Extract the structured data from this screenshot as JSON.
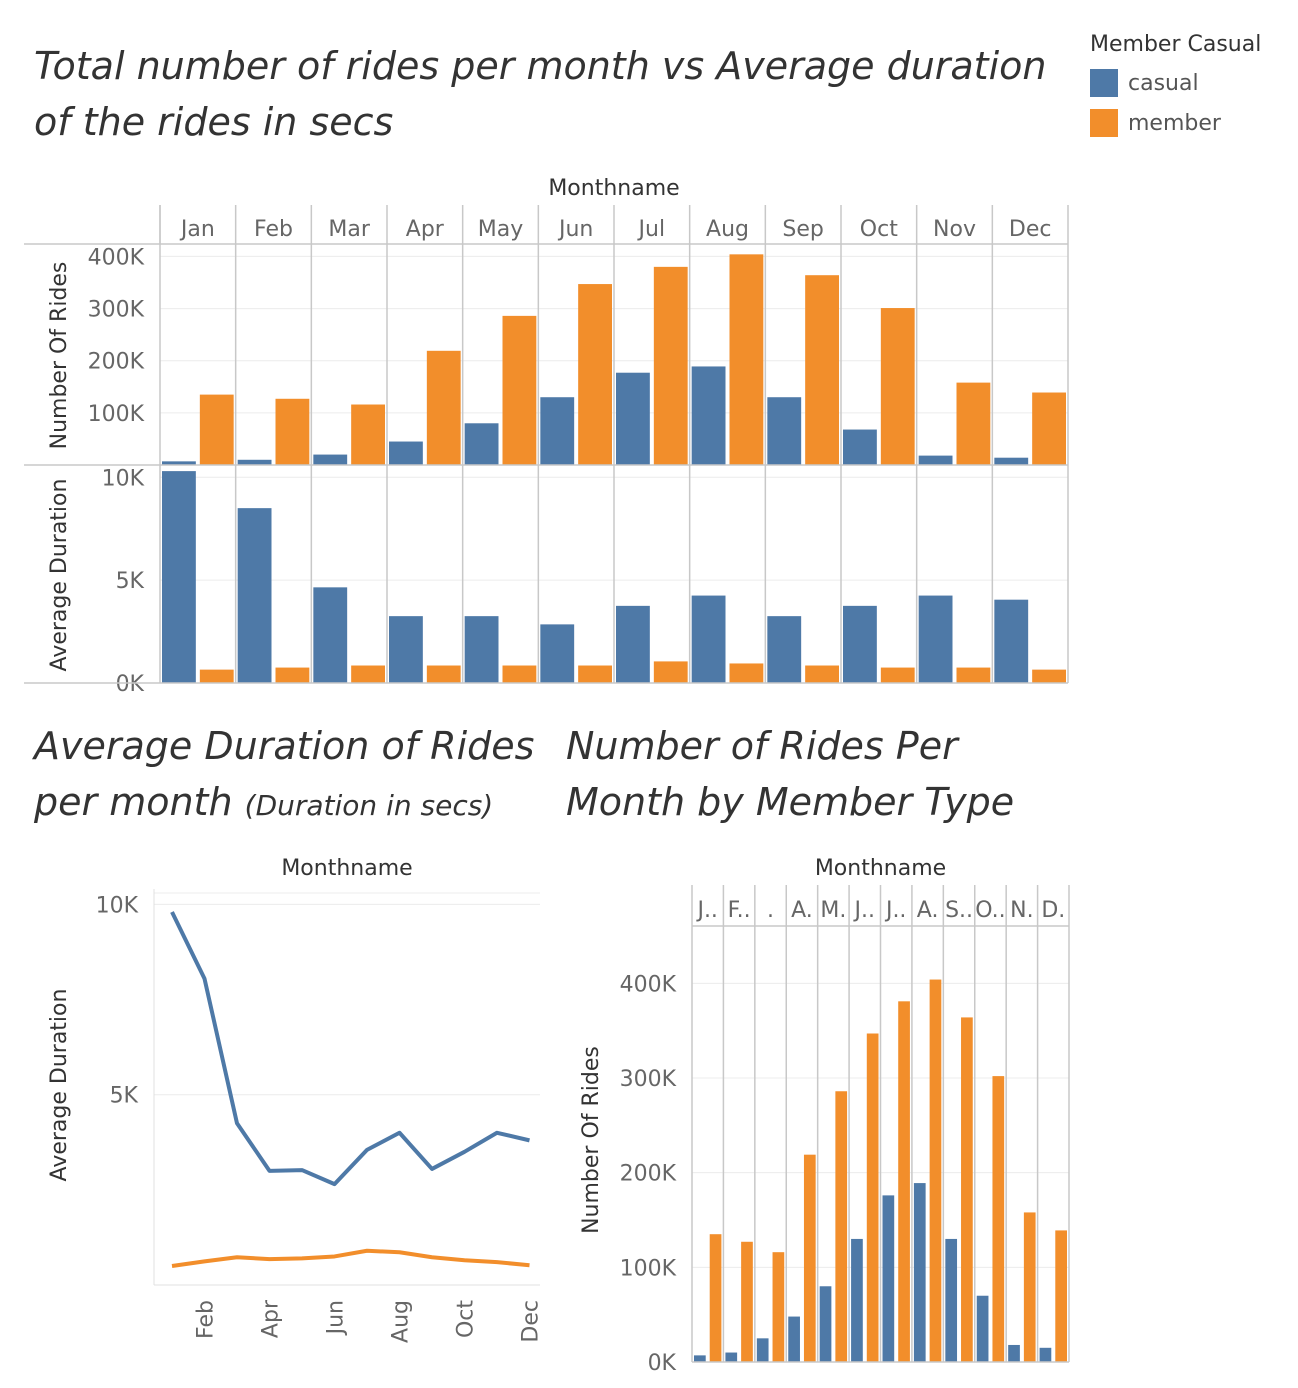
{
  "titles": {
    "main": "Total number of rides per month vs Average duration of the rides in secs",
    "duration_main": "Average Duration of Rides per month",
    "duration_sub": "(Duration in secs)",
    "rides": "Number of Rides Per Month by Member Type"
  },
  "legend": {
    "title": "Member Casual",
    "items": [
      {
        "label": "casual",
        "color": "#4e79a7"
      },
      {
        "label": "member",
        "color": "#f28e2b"
      }
    ]
  },
  "chart_data": [
    {
      "type": "bar",
      "title": "Total number of rides per month vs Average duration of the rides in secs",
      "header_label": "Monthname",
      "categories": [
        "Jan",
        "Feb",
        "Mar",
        "Apr",
        "May",
        "Jun",
        "Jul",
        "Aug",
        "Sep",
        "Oct",
        "Nov",
        "Dec"
      ],
      "panels": [
        {
          "ylabel": "Number Of Rides",
          "ylim": [
            0,
            420000
          ],
          "yticks": [
            100000,
            200000,
            300000,
            400000
          ],
          "ytick_labels": [
            "100K",
            "200K",
            "300K",
            "400K"
          ],
          "series": [
            {
              "name": "casual",
              "values": [
                7000,
                10000,
                20000,
                45000,
                80000,
                130000,
                177000,
                189000,
                130000,
                68000,
                18000,
                14000
              ]
            },
            {
              "name": "member",
              "values": [
                135000,
                127000,
                116000,
                219000,
                286000,
                347000,
                380000,
                404000,
                364000,
                301000,
                158000,
                139000
              ]
            }
          ]
        },
        {
          "ylabel": "Average Duration",
          "ylim": [
            0,
            10500
          ],
          "yticks": [
            0,
            5000,
            10000
          ],
          "ytick_labels": [
            "0K",
            "5K",
            "10K"
          ],
          "series": [
            {
              "name": "casual",
              "values": [
                10300,
                8500,
                4650,
                3250,
                3250,
                2850,
                3750,
                4250,
                3250,
                3750,
                4250,
                4050
              ]
            },
            {
              "name": "member",
              "values": [
                650,
                750,
                850,
                850,
                850,
                850,
                1050,
                950,
                850,
                750,
                750,
                650
              ]
            }
          ]
        }
      ],
      "grid": true
    },
    {
      "type": "line",
      "title": "Average Duration of Rides per month (Duration in secs)",
      "header_label": "Monthname",
      "x": [
        "Jan",
        "Feb",
        "Mar",
        "Apr",
        "May",
        "Jun",
        "Jul",
        "Aug",
        "Sep",
        "Oct",
        "Nov",
        "Dec"
      ],
      "xtick_labels": [
        "Feb",
        "Apr",
        "Jun",
        "Aug",
        "Oct",
        "Dec"
      ],
      "ylabel": "Average Duration",
      "ylim": [
        0,
        10300
      ],
      "yticks": [
        5000,
        10000
      ],
      "ytick_labels": [
        "5K",
        "10K"
      ],
      "series": [
        {
          "name": "casual",
          "values": [
            9800,
            8050,
            4250,
            3000,
            3020,
            2650,
            3550,
            4000,
            3050,
            3500,
            4000,
            3800
          ]
        },
        {
          "name": "member",
          "values": [
            500,
            620,
            730,
            680,
            700,
            750,
            900,
            860,
            730,
            650,
            600,
            520
          ]
        }
      ],
      "grid": true
    },
    {
      "type": "bar",
      "title": "Number of Rides Per Month by Member Type",
      "header_label": "Monthname",
      "categories": [
        "J..",
        "F..",
        ".",
        "A.",
        "M.",
        "J..",
        "J..",
        "A.",
        "S..",
        "O..",
        "N.",
        "D."
      ],
      "ylabel": "Number Of Rides",
      "ylim": [
        0,
        450000
      ],
      "yticks": [
        0,
        100000,
        200000,
        300000,
        400000
      ],
      "ytick_labels": [
        "0K",
        "100K",
        "200K",
        "300K",
        "400K"
      ],
      "series": [
        {
          "name": "casual",
          "values": [
            7000,
            10000,
            25000,
            48000,
            80000,
            130000,
            176000,
            189000,
            130000,
            70000,
            18000,
            15000
          ]
        },
        {
          "name": "member",
          "values": [
            135000,
            127000,
            116000,
            219000,
            286000,
            347000,
            381000,
            404000,
            364000,
            302000,
            158000,
            139000
          ]
        }
      ],
      "grid": true
    }
  ]
}
